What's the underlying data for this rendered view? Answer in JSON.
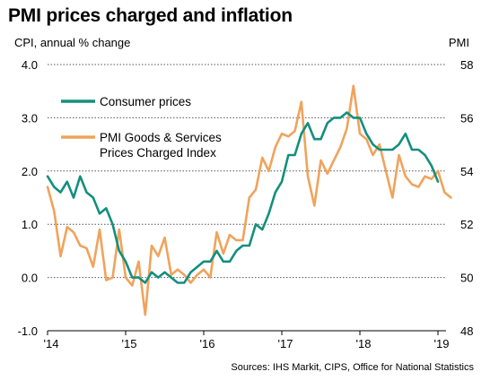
{
  "chart_data": {
    "type": "line",
    "title": "PMI prices charged and inflation",
    "left_axis_label": "CPI, annual % change",
    "right_axis_label": "PMI",
    "left_ylim": [
      -1.0,
      4.0
    ],
    "left_ticks": [
      "4.0",
      "3.0",
      "2.0",
      "1.0",
      "0.0",
      "-1.0"
    ],
    "right_ylim": [
      48,
      58
    ],
    "right_ticks": [
      "58",
      "56",
      "54",
      "52",
      "50",
      "48"
    ],
    "x_ticks": [
      "'14",
      "'15",
      "'16",
      "'17",
      "'18",
      "'19"
    ],
    "grid": "horizontal dotted",
    "legend_placement": "upper-left",
    "source": "Sources: IHS Markit, CIPS, Office for National Statistics",
    "series": [
      {
        "name": "Consumer prices",
        "axis": "left",
        "color": "#138f7e",
        "start": "2014-01",
        "frequency": "monthly",
        "values": [
          1.9,
          1.7,
          1.6,
          1.8,
          1.5,
          1.9,
          1.6,
          1.5,
          1.2,
          1.3,
          1.0,
          0.5,
          0.3,
          0.0,
          0.0,
          -0.1,
          0.1,
          0.0,
          0.1,
          0.0,
          -0.1,
          -0.1,
          0.1,
          0.2,
          0.3,
          0.3,
          0.5,
          0.3,
          0.3,
          0.5,
          0.6,
          0.6,
          1.0,
          0.9,
          1.2,
          1.6,
          1.8,
          2.3,
          2.3,
          2.7,
          2.9,
          2.6,
          2.6,
          2.9,
          3.0,
          3.0,
          3.1,
          3.0,
          3.0,
          2.7,
          2.5,
          2.4,
          2.4,
          2.4,
          2.5,
          2.7,
          2.4,
          2.4,
          2.3,
          2.1,
          1.8
        ]
      },
      {
        "name": "PMI Goods & Services Prices Charged Index",
        "axis": "right",
        "color": "#f0a35c",
        "start": "2014-01",
        "frequency": "monthly",
        "values": [
          53.4,
          52.5,
          50.8,
          51.9,
          51.7,
          51.2,
          51.1,
          50.4,
          51.8,
          49.9,
          50.0,
          51.8,
          50.0,
          49.7,
          50.6,
          48.6,
          51.2,
          50.8,
          51.5,
          50.1,
          50.3,
          50.1,
          49.8,
          50.1,
          50.3,
          50.0,
          51.7,
          50.9,
          51.6,
          51.4,
          51.4,
          53.0,
          53.3,
          54.5,
          54.0,
          54.9,
          55.4,
          55.3,
          55.5,
          56.6,
          53.8,
          52.7,
          54.4,
          53.9,
          54.4,
          54.9,
          55.6,
          57.2,
          55.4,
          55.2,
          54.6,
          55.0,
          54.0,
          53.0,
          54.6,
          53.8,
          53.5,
          53.4,
          53.8,
          53.7,
          54.0,
          53.2,
          53.0
        ]
      }
    ]
  }
}
